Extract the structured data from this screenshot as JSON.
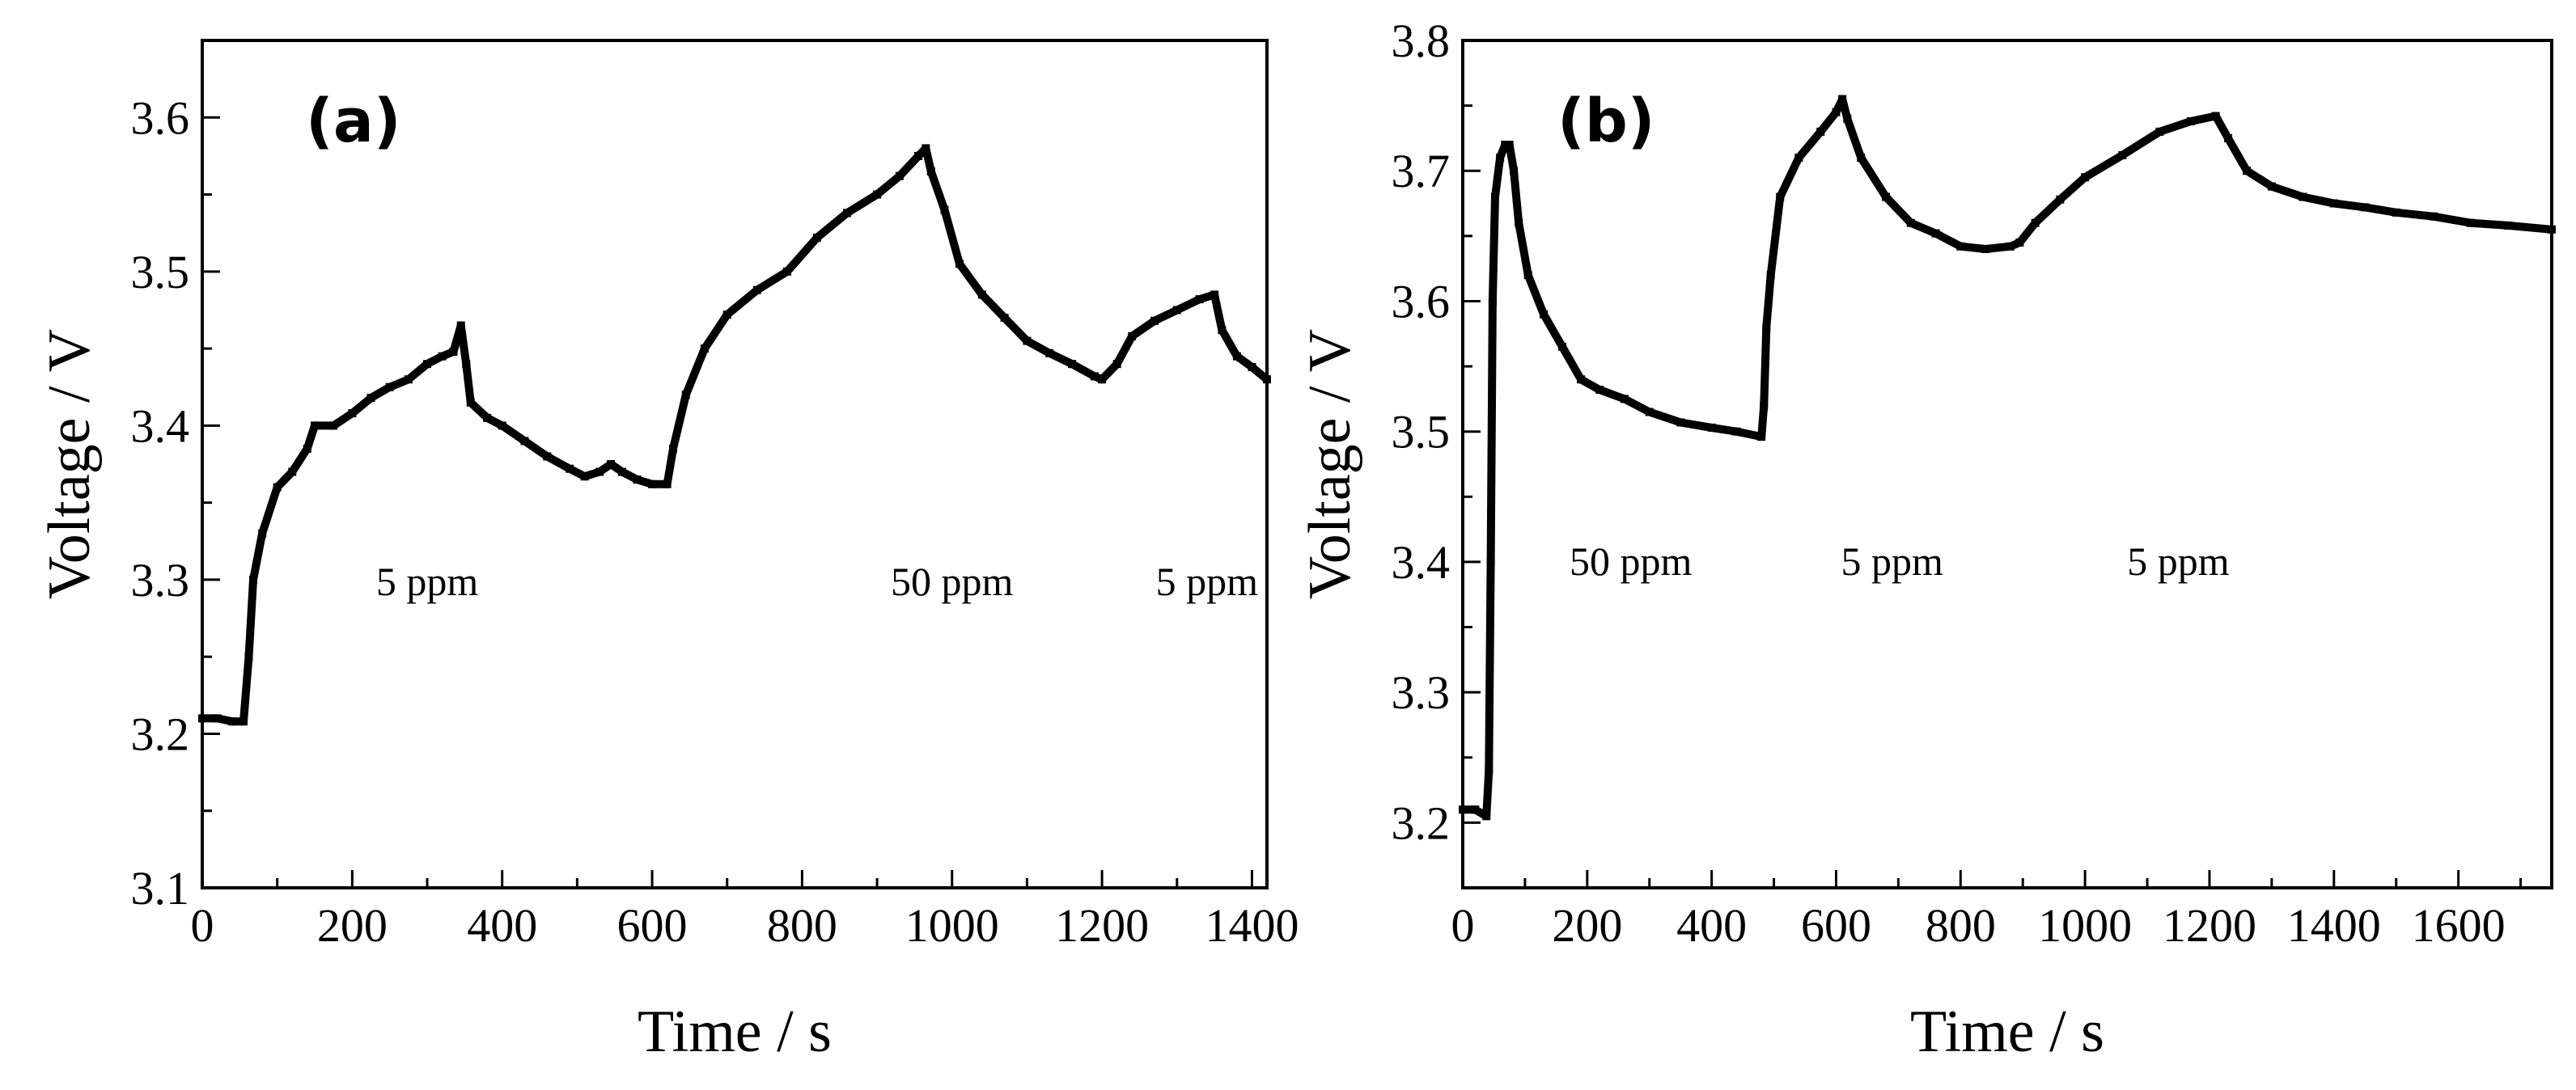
{
  "chart_data": [
    {
      "type": "line",
      "panel_label": "(a)",
      "xlabel": "Time / s",
      "ylabel": "Voltage / V",
      "xlim": [
        0,
        1420
      ],
      "ylim": [
        3.1,
        3.65
      ],
      "xticks": [
        0,
        200,
        400,
        600,
        800,
        1000,
        1200,
        1400
      ],
      "yticks": [
        3.1,
        3.2,
        3.3,
        3.4,
        3.5,
        3.6
      ],
      "xtick_labels": [
        "0",
        "200",
        "400",
        "600",
        "800",
        "1000",
        "1200",
        "1400"
      ],
      "ytick_labels": [
        "3.1",
        "3.2",
        "3.3",
        "3.4",
        "3.5",
        "3.6"
      ],
      "series": [
        {
          "name": "Voltage",
          "color": "#000000",
          "points": [
            [
              0,
              3.21
            ],
            [
              20,
              3.21
            ],
            [
              40,
              3.208
            ],
            [
              55,
              3.208
            ],
            [
              62,
              3.25
            ],
            [
              68,
              3.3
            ],
            [
              80,
              3.33
            ],
            [
              100,
              3.36
            ],
            [
              120,
              3.37
            ],
            [
              140,
              3.385
            ],
            [
              150,
              3.4
            ],
            [
              175,
              3.4
            ],
            [
              200,
              3.408
            ],
            [
              225,
              3.418
            ],
            [
              250,
              3.425
            ],
            [
              275,
              3.43
            ],
            [
              300,
              3.44
            ],
            [
              320,
              3.445
            ],
            [
              335,
              3.448
            ],
            [
              345,
              3.465
            ],
            [
              352,
              3.44
            ],
            [
              358,
              3.415
            ],
            [
              380,
              3.405
            ],
            [
              400,
              3.4
            ],
            [
              430,
              3.39
            ],
            [
              460,
              3.38
            ],
            [
              490,
              3.372
            ],
            [
              510,
              3.367
            ],
            [
              530,
              3.37
            ],
            [
              545,
              3.375
            ],
            [
              560,
              3.37
            ],
            [
              580,
              3.365
            ],
            [
              600,
              3.362
            ],
            [
              620,
              3.362
            ],
            [
              628,
              3.385
            ],
            [
              645,
              3.42
            ],
            [
              670,
              3.45
            ],
            [
              700,
              3.472
            ],
            [
              740,
              3.488
            ],
            [
              780,
              3.5
            ],
            [
              820,
              3.522
            ],
            [
              860,
              3.538
            ],
            [
              900,
              3.55
            ],
            [
              930,
              3.562
            ],
            [
              955,
              3.575
            ],
            [
              965,
              3.58
            ],
            [
              972,
              3.565
            ],
            [
              990,
              3.54
            ],
            [
              1010,
              3.505
            ],
            [
              1040,
              3.485
            ],
            [
              1070,
              3.47
            ],
            [
              1100,
              3.455
            ],
            [
              1130,
              3.447
            ],
            [
              1160,
              3.44
            ],
            [
              1190,
              3.432
            ],
            [
              1200,
              3.43
            ],
            [
              1220,
              3.44
            ],
            [
              1240,
              3.458
            ],
            [
              1270,
              3.468
            ],
            [
              1300,
              3.475
            ],
            [
              1330,
              3.482
            ],
            [
              1350,
              3.485
            ],
            [
              1360,
              3.462
            ],
            [
              1380,
              3.445
            ],
            [
              1400,
              3.438
            ],
            [
              1420,
              3.43
            ]
          ]
        }
      ],
      "annotations": [
        {
          "text": "5 ppm",
          "x": 300,
          "y": 3.29
        },
        {
          "text": "50 ppm",
          "x": 1000,
          "y": 3.29
        },
        {
          "text": "5 ppm",
          "x": 1340,
          "y": 3.29
        }
      ]
    },
    {
      "type": "line",
      "panel_label": "(b)",
      "xlabel": "Time / s",
      "ylabel": "Voltage / V",
      "xlim": [
        0,
        1750
      ],
      "ylim": [
        3.15,
        3.8
      ],
      "xticks": [
        0,
        200,
        400,
        600,
        800,
        1000,
        1200,
        1400,
        1600
      ],
      "yticks": [
        3.2,
        3.3,
        3.4,
        3.5,
        3.6,
        3.7,
        3.8
      ],
      "xtick_labels": [
        "0",
        "200",
        "400",
        "600",
        "800",
        "1000",
        "1200",
        "1400",
        "1600"
      ],
      "ytick_labels": [
        "3.2",
        "3.3",
        "3.4",
        "3.5",
        "3.6",
        "3.7",
        "3.8"
      ],
      "series": [
        {
          "name": "Voltage",
          "color": "#000000",
          "points": [
            [
              0,
              3.21
            ],
            [
              20,
              3.21
            ],
            [
              38,
              3.205
            ],
            [
              42,
              3.24
            ],
            [
              45,
              3.4
            ],
            [
              48,
              3.6
            ],
            [
              52,
              3.68
            ],
            [
              60,
              3.71
            ],
            [
              68,
              3.72
            ],
            [
              75,
              3.72
            ],
            [
              82,
              3.7
            ],
            [
              90,
              3.66
            ],
            [
              105,
              3.62
            ],
            [
              130,
              3.59
            ],
            [
              160,
              3.565
            ],
            [
              190,
              3.54
            ],
            [
              220,
              3.532
            ],
            [
              260,
              3.525
            ],
            [
              300,
              3.515
            ],
            [
              350,
              3.507
            ],
            [
              400,
              3.503
            ],
            [
              440,
              3.5
            ],
            [
              480,
              3.496
            ],
            [
              484,
              3.52
            ],
            [
              488,
              3.58
            ],
            [
              495,
              3.62
            ],
            [
              510,
              3.68
            ],
            [
              540,
              3.71
            ],
            [
              575,
              3.73
            ],
            [
              600,
              3.745
            ],
            [
              610,
              3.755
            ],
            [
              618,
              3.74
            ],
            [
              640,
              3.71
            ],
            [
              680,
              3.68
            ],
            [
              720,
              3.66
            ],
            [
              760,
              3.652
            ],
            [
              800,
              3.642
            ],
            [
              840,
              3.64
            ],
            [
              880,
              3.642
            ],
            [
              895,
              3.645
            ],
            [
              920,
              3.66
            ],
            [
              960,
              3.678
            ],
            [
              1000,
              3.695
            ],
            [
              1060,
              3.712
            ],
            [
              1120,
              3.73
            ],
            [
              1170,
              3.738
            ],
            [
              1210,
              3.742
            ],
            [
              1230,
              3.725
            ],
            [
              1260,
              3.7
            ],
            [
              1300,
              3.688
            ],
            [
              1350,
              3.68
            ],
            [
              1400,
              3.675
            ],
            [
              1450,
              3.672
            ],
            [
              1500,
              3.668
            ],
            [
              1560,
              3.665
            ],
            [
              1620,
              3.66
            ],
            [
              1680,
              3.658
            ],
            [
              1750,
              3.655
            ]
          ]
        }
      ],
      "annotations": [
        {
          "text": "50 ppm",
          "x": 270,
          "y": 3.39
        },
        {
          "text": "5 ppm",
          "x": 690,
          "y": 3.39
        },
        {
          "text": "5 ppm",
          "x": 1150,
          "y": 3.39
        }
      ]
    }
  ]
}
